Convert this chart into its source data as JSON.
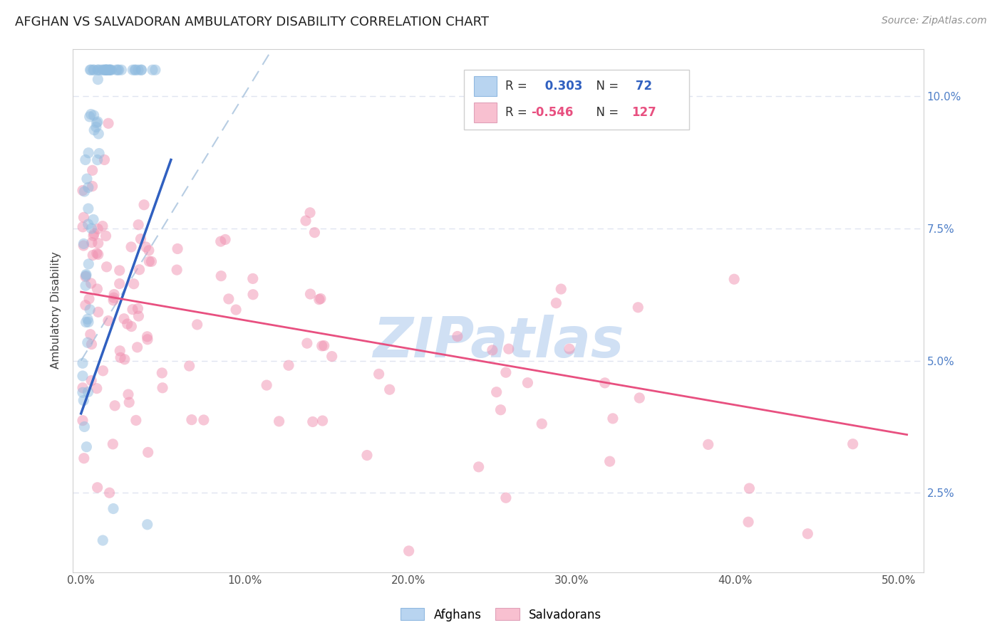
{
  "title": "AFGHAN VS SALVADORAN AMBULATORY DISABILITY CORRELATION CHART",
  "source": "Source: ZipAtlas.com",
  "ylabel": "Ambulatory Disability",
  "x_ticks": [
    0.0,
    0.1,
    0.2,
    0.3,
    0.4,
    0.5
  ],
  "x_tick_labels": [
    "0.0%",
    "10.0%",
    "20.0%",
    "30.0%",
    "40.0%",
    "50.0%"
  ],
  "y_ticks": [
    0.025,
    0.05,
    0.075,
    0.1
  ],
  "y_tick_labels": [
    "2.5%",
    "5.0%",
    "7.5%",
    "10.0%"
  ],
  "xlim": [
    -0.005,
    0.515
  ],
  "ylim": [
    0.01,
    0.109
  ],
  "afghan_color": "#90bce0",
  "salvadoran_color": "#f090b0",
  "afghan_trend_color": "#3060c0",
  "salvadoran_trend_color": "#e85080",
  "dashed_line_color": "#b0c8e0",
  "watermark_text": "ZIPatlas",
  "watermark_color": "#d0e0f4",
  "background_color": "#ffffff",
  "grid_color": "#e0e4f0",
  "title_fontsize": 13,
  "source_fontsize": 10,
  "axis_label_fontsize": 11,
  "tick_fontsize": 11,
  "legend_fontsize": 12,
  "watermark_fontsize": 56,
  "afghan_R": 0.303,
  "afghan_N": 72,
  "salvadoran_R": -0.546,
  "salvadoran_N": 127,
  "afghan_trend_x": [
    0.0,
    0.055
  ],
  "afghan_trend_y": [
    0.04,
    0.088
  ],
  "salvadoran_trend_x": [
    0.0,
    0.505
  ],
  "salvadoran_trend_y": [
    0.063,
    0.036
  ],
  "dashed_trend_x": [
    0.0,
    0.115
  ],
  "dashed_trend_y": [
    0.05,
    0.108
  ]
}
